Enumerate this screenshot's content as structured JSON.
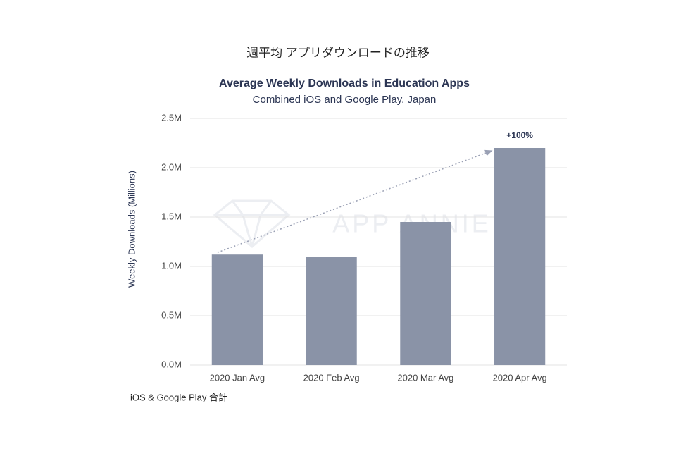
{
  "chart_data": {
    "type": "bar",
    "heading": "週平均 アプリダウンロードの推移",
    "title": "Average Weekly Downloads in Education Apps",
    "subtitle": "Combined iOS and Google Play, Japan",
    "y_label": "Weekly Downloads (Millions)",
    "categories": [
      "2020 Jan Avg",
      "2020 Feb Avg",
      "2020 Mar Avg",
      "2020 Apr Avg"
    ],
    "values": [
      1.12,
      1.1,
      1.45,
      2.2
    ],
    "color": "#8a93a7",
    "ylim": [
      0,
      2.5
    ],
    "yticks": [
      {
        "value": 0,
        "label": "0.0M"
      },
      {
        "value": 0.5,
        "label": "0.5M"
      },
      {
        "value": 1,
        "label": "1.0M"
      },
      {
        "value": 1.5,
        "label": "1.5M"
      },
      {
        "value": 2,
        "label": "2.0M"
      },
      {
        "value": 2.5,
        "label": "2.5M"
      }
    ],
    "grid": true,
    "annotation": "+100%",
    "watermark": "APP ANNIE",
    "footnote": "iOS & Google Play 合計"
  }
}
